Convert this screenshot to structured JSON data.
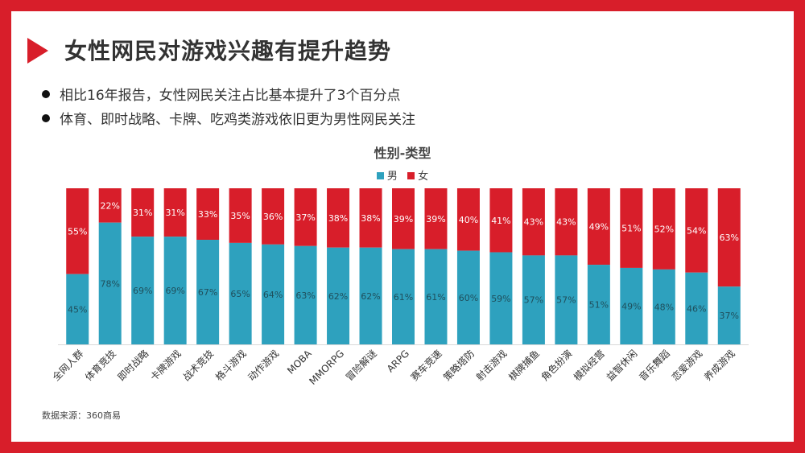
{
  "slide": {
    "title": "女性网民对游戏兴趣有提升趋势",
    "bullets": [
      "相比16年报告，女性网民关注占比基本提升了3个百分点",
      "体育、即时战略、卡牌、吃鸡类游戏依旧更为男性网民关注"
    ],
    "source": "数据来源：360商易"
  },
  "colors": {
    "male": "#2ea1be",
    "female": "#d81e2a",
    "accent": "#d81e2a"
  },
  "chart_data": {
    "type": "bar",
    "stacked": true,
    "title": "性别-类型",
    "legend_position": "top",
    "categories": [
      "全网人群",
      "体育竞技",
      "即时战略",
      "卡牌游戏",
      "战术竞技",
      "格斗游戏",
      "动作游戏",
      "MOBA",
      "MMORPG",
      "冒险解谜",
      "ARPG",
      "赛车竞速",
      "策略塔防",
      "射击游戏",
      "棋牌捕鱼",
      "角色扮演",
      "模拟经营",
      "益智休闲",
      "音乐舞蹈",
      "恋爱游戏",
      "养成游戏"
    ],
    "series": [
      {
        "name": "男",
        "values": [
          45,
          78,
          69,
          69,
          67,
          65,
          64,
          63,
          62,
          62,
          61,
          61,
          60,
          59,
          57,
          57,
          51,
          49,
          48,
          46,
          37
        ]
      },
      {
        "name": "女",
        "values": [
          55,
          22,
          31,
          31,
          33,
          35,
          36,
          37,
          38,
          38,
          39,
          39,
          40,
          41,
          43,
          43,
          49,
          51,
          52,
          54,
          63
        ]
      }
    ],
    "labels": {
      "male": [
        "45%",
        "78%",
        "69%",
        "69%",
        "67%",
        "65%",
        "64%",
        "63%",
        "62%",
        "62%",
        "61%",
        "61%",
        "60%",
        "59%",
        "57%",
        "57%",
        "51%",
        "49%",
        "48%",
        "46%",
        "37%"
      ],
      "female": [
        "55%",
        "22%",
        "31%",
        "31%",
        "33%",
        "35%",
        "36%",
        "37%",
        "38%",
        "38%",
        "39%",
        "39%",
        "40%",
        "41%",
        "43%",
        "43%",
        "49%",
        "51%",
        "52%",
        "54%",
        "63%"
      ]
    },
    "ylim": [
      0,
      100
    ],
    "grid": false
  }
}
